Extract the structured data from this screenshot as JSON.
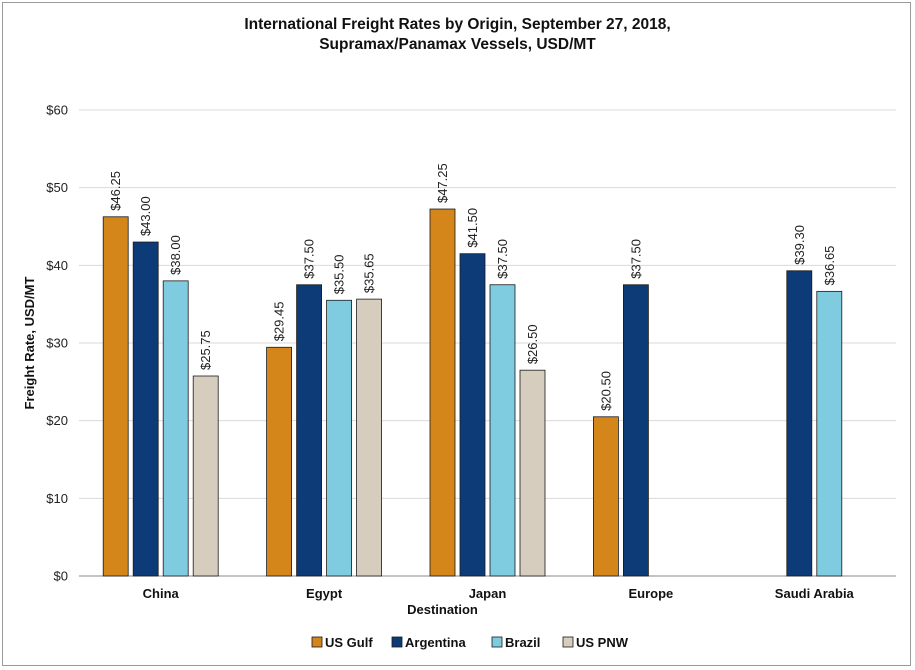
{
  "chart_data": {
    "type": "bar",
    "title_line1": "International Freight Rates by Origin, September 27, 2018,",
    "title_line2": "Supramax/Panamax Vessels, USD/MT",
    "xlabel": "Destination",
    "ylabel": "Freight Rate, USD/MT",
    "ylim": [
      0,
      60
    ],
    "yticks": [
      0,
      10,
      20,
      30,
      40,
      50,
      60
    ],
    "ytick_labels": [
      "$0",
      "$10",
      "$20",
      "$30",
      "$40",
      "$50",
      "$60"
    ],
    "grid": true,
    "legend_position": "bottom",
    "categories": [
      "China",
      "Egypt",
      "Japan",
      "Europe",
      "Saudi Arabia"
    ],
    "series": [
      {
        "name": "US Gulf",
        "color": "#d4861a",
        "values": [
          46.25,
          29.45,
          47.25,
          20.5,
          null
        ],
        "labels": [
          "$46.25",
          "$29.45",
          "$47.25",
          "$20.50",
          null
        ]
      },
      {
        "name": "Argentina",
        "color": "#0c3b78",
        "values": [
          43.0,
          37.5,
          41.5,
          37.5,
          39.3
        ],
        "labels": [
          "$43.00",
          "$37.50",
          "$41.50",
          "$37.50",
          "$39.30"
        ]
      },
      {
        "name": "Brazil",
        "color": "#7fcbe0",
        "values": [
          38.0,
          35.5,
          37.5,
          null,
          36.65
        ],
        "labels": [
          "$38.00",
          "$35.50",
          "$37.50",
          null,
          "$36.65"
        ]
      },
      {
        "name": "US PNW",
        "color": "#d6cdbf",
        "values": [
          25.75,
          35.65,
          26.5,
          null,
          null
        ],
        "labels": [
          "$25.75",
          "$35.65",
          "$26.50",
          null,
          null
        ]
      }
    ]
  }
}
